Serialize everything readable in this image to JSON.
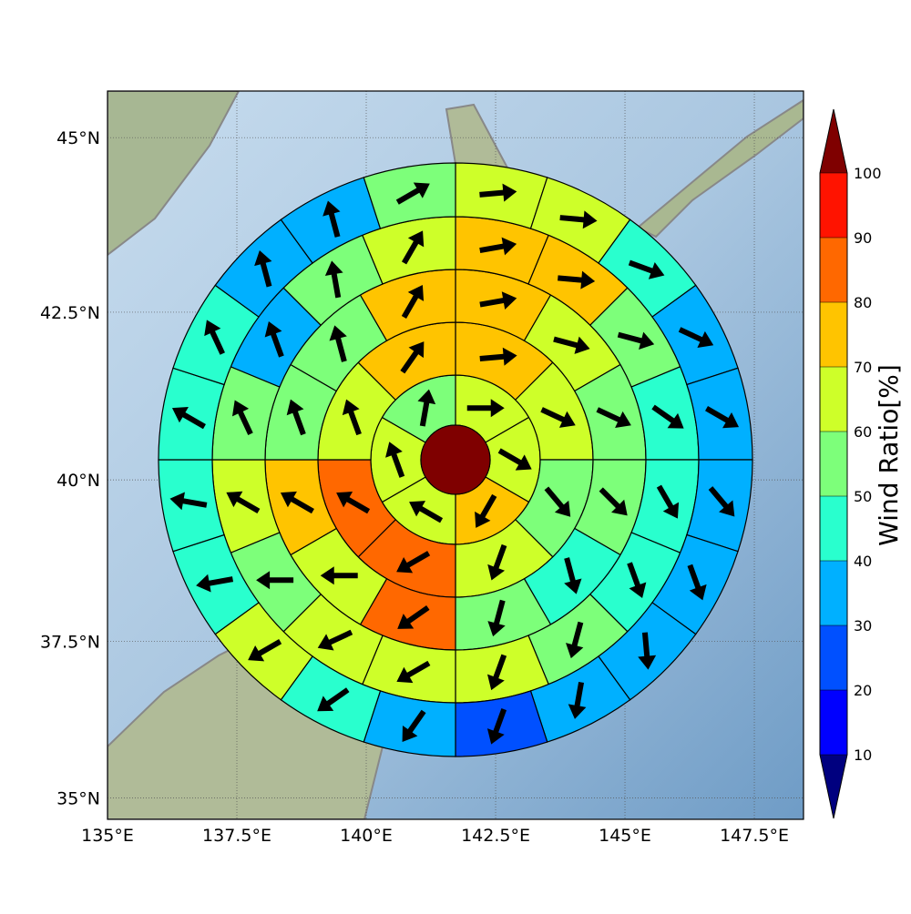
{
  "chart_data": {
    "type": "polar_sector_map",
    "xlim": [
      135,
      148.45
    ],
    "ylim": [
      34.65,
      45.65
    ],
    "xticks": [
      {
        "value": 135,
        "label": "135°E"
      },
      {
        "value": 137.5,
        "label": "137.5°E"
      },
      {
        "value": 140,
        "label": "140°E"
      },
      {
        "value": 142.5,
        "label": "142.5°E"
      },
      {
        "value": 145,
        "label": "145°E"
      },
      {
        "value": 147.5,
        "label": "147.5°E"
      }
    ],
    "yticks": [
      {
        "value": 35,
        "label": "35°N"
      },
      {
        "value": 37.5,
        "label": "37.5°N"
      },
      {
        "value": 40,
        "label": "40°N"
      },
      {
        "value": 42.5,
        "label": "42.5°N"
      },
      {
        "value": 45,
        "label": "45°N"
      }
    ],
    "grid": true,
    "colorbar": {
      "label": "Wind Ratio[%]",
      "levels": [
        10,
        20,
        30,
        40,
        50,
        60,
        70,
        80,
        90,
        100
      ],
      "colors": [
        "#00007f",
        "#0000ff",
        "#0050ff",
        "#00b0ff",
        "#29ffce",
        "#7dff7a",
        "#ceff29",
        "#ffc400",
        "#ff6800",
        "#ff1300",
        "#7f0000"
      ]
    },
    "center": {
      "color": "#7f0000"
    },
    "rings": [
      {
        "values": [
          65,
          65,
          75,
          65,
          65,
          55
        ],
        "directions": [
          90,
          120,
          210,
          300,
          340,
          10
        ]
      },
      {
        "values": [
          75,
          65,
          55,
          65,
          85,
          85,
          65,
          75
        ],
        "directions": [
          85,
          115,
          140,
          200,
          240,
          300,
          340,
          35
        ]
      },
      {
        "values": [
          75,
          65,
          55,
          55,
          45,
          55,
          85,
          65,
          75,
          55,
          55,
          75
        ],
        "directions": [
          80,
          105,
          115,
          135,
          165,
          195,
          235,
          270,
          300,
          340,
          345,
          30
        ]
      },
      {
        "values": [
          75,
          75,
          55,
          45,
          45,
          45,
          55,
          65,
          65,
          65,
          55,
          65,
          55,
          35,
          55,
          65
        ],
        "directions": [
          80,
          95,
          105,
          125,
          150,
          160,
          195,
          200,
          240,
          245,
          270,
          300,
          335,
          340,
          350,
          30
        ]
      },
      {
        "values": [
          65,
          65,
          45,
          35,
          35,
          35,
          35,
          35,
          35,
          25,
          35,
          45,
          65,
          45,
          45,
          45,
          45,
          35,
          35,
          55
        ],
        "directions": [
          85,
          95,
          110,
          115,
          120,
          140,
          160,
          175,
          190,
          200,
          215,
          235,
          240,
          260,
          280,
          300,
          335,
          345,
          345,
          60
        ]
      }
    ]
  }
}
